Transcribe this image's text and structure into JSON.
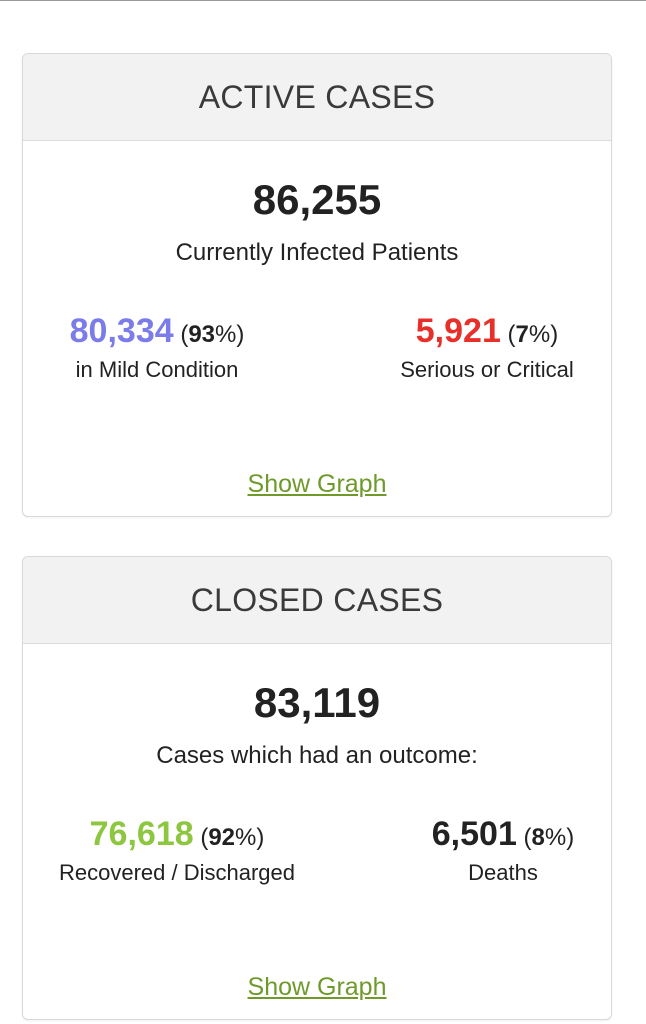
{
  "active": {
    "title": "ACTIVE CASES",
    "total": "86,255",
    "subtitle": "Currently Infected Patients",
    "left": {
      "value": "80,334",
      "pct": "93",
      "label": "in Mild Condition",
      "color": "#7b7bea"
    },
    "right": {
      "value": "5,921",
      "pct": "7",
      "label": "Serious or Critical",
      "color": "#e8302a"
    },
    "link": "Show Graph"
  },
  "closed": {
    "title": "CLOSED CASES",
    "total": "83,119",
    "subtitle": "Cases which had an outcome:",
    "left": {
      "value": "76,618",
      "pct": "92",
      "label": "Recovered / Discharged",
      "color": "#8dc63f"
    },
    "right": {
      "value": "6,501",
      "pct": "8",
      "label": "Deaths",
      "color": "#222222"
    },
    "link": "Show Graph"
  }
}
